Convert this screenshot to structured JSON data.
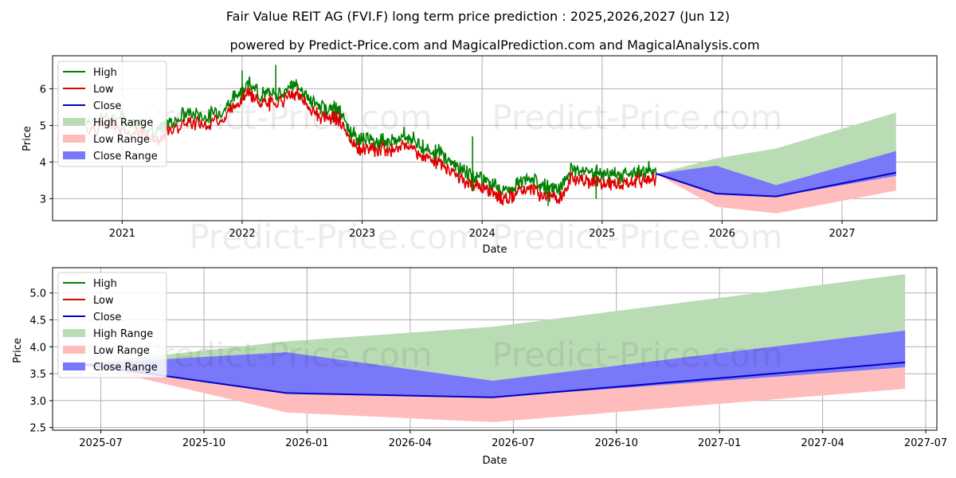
{
  "title": "Fair Value REIT AG (FVI.F) long term price prediction : 2025,2026,2027 (Jun 12)",
  "subtitle": "powered by Predict-Price.com and MagicalPrediction.com and MagicalAnalysis.com",
  "watermark": "Predict-Price.com",
  "colors": {
    "high": "#008000",
    "low": "#e00000",
    "close": "#0000c8",
    "high_range": "#b9dcb4",
    "low_range": "#ffbcbc",
    "close_range": "#7878f8"
  },
  "chart_data": [
    {
      "type": "line",
      "panel": "top",
      "xlabel": "Date",
      "ylabel": "Price",
      "x_ticks": [
        2021,
        2022,
        2023,
        2024,
        2025,
        2026,
        2027
      ],
      "x_tick_labels": [
        "2021",
        "2022",
        "2023",
        "2024",
        "2025",
        "2026",
        "2027"
      ],
      "xlim": [
        2020.42,
        2027.79
      ],
      "y_ticks": [
        3,
        4,
        5,
        6
      ],
      "y_tick_labels": [
        "3",
        "4",
        "5",
        "6"
      ],
      "ylim": [
        2.4,
        6.9
      ],
      "grid": true,
      "legend": [
        "High",
        "Low",
        "Close",
        "High Range",
        "Low Range",
        "Close Range"
      ],
      "legend_position": "upper-left",
      "history_anchor_points": [
        [
          2020.7,
          5.0
        ],
        [
          2020.9,
          5.1
        ],
        [
          2021.15,
          4.9
        ],
        [
          2021.3,
          4.7
        ],
        [
          2021.4,
          4.95
        ],
        [
          2021.55,
          5.2
        ],
        [
          2021.7,
          5.1
        ],
        [
          2021.85,
          5.3
        ],
        [
          2021.95,
          5.7
        ],
        [
          2022.05,
          6.0
        ],
        [
          2022.15,
          5.7
        ],
        [
          2022.25,
          5.7
        ],
        [
          2022.4,
          5.9
        ],
        [
          2022.45,
          6.0
        ],
        [
          2022.55,
          5.6
        ],
        [
          2022.65,
          5.35
        ],
        [
          2022.75,
          5.3
        ],
        [
          2022.8,
          5.3
        ],
        [
          2022.9,
          4.7
        ],
        [
          2022.98,
          4.45
        ],
        [
          2023.05,
          4.5
        ],
        [
          2023.15,
          4.45
        ],
        [
          2023.22,
          4.4
        ],
        [
          2023.35,
          4.6
        ],
        [
          2023.45,
          4.4
        ],
        [
          2023.55,
          4.2
        ],
        [
          2023.65,
          4.1
        ],
        [
          2023.75,
          3.85
        ],
        [
          2023.85,
          3.6
        ],
        [
          2023.92,
          3.5
        ],
        [
          2024.0,
          3.45
        ],
        [
          2024.08,
          3.3
        ],
        [
          2024.15,
          3.15
        ],
        [
          2024.25,
          3.15
        ],
        [
          2024.35,
          3.4
        ],
        [
          2024.45,
          3.3
        ],
        [
          2024.55,
          3.15
        ],
        [
          2024.65,
          3.1
        ],
        [
          2024.75,
          3.7
        ],
        [
          2024.85,
          3.6
        ],
        [
          2024.95,
          3.55
        ],
        [
          2025.05,
          3.5
        ],
        [
          2025.15,
          3.5
        ],
        [
          2025.25,
          3.55
        ],
        [
          2025.35,
          3.65
        ],
        [
          2025.45,
          3.68
        ]
      ],
      "history_spikes": [
        [
          2023.92,
          4.7,
          3.2
        ],
        [
          2024.55,
          3.3,
          2.8
        ],
        [
          2024.95,
          3.75,
          3.0
        ],
        [
          2022.28,
          6.65,
          5.7
        ],
        [
          2022.0,
          6.5,
          5.7
        ]
      ],
      "forecast": {
        "x": [
          2025.45,
          2025.95,
          2026.45,
          2027.45
        ],
        "close": [
          3.68,
          3.14,
          3.06,
          3.71
        ],
        "high_range_upper": [
          3.68,
          4.1,
          4.37,
          5.35
        ],
        "low_range_lower": [
          3.68,
          2.78,
          2.6,
          3.22
        ],
        "close_range_upper": [
          3.68,
          3.9,
          3.37,
          4.3
        ],
        "close_range_lower": [
          3.68,
          3.14,
          3.06,
          3.62
        ]
      }
    },
    {
      "type": "area",
      "panel": "bottom",
      "xlabel": "Date",
      "ylabel": "Price",
      "x_ticks": [
        2025.5,
        2025.75,
        2026.0,
        2026.25,
        2026.5,
        2026.75,
        2027.0,
        2027.25,
        2027.5
      ],
      "x_tick_labels": [
        "2025-07",
        "2025-10",
        "2026-01",
        "2026-04",
        "2026-07",
        "2026-10",
        "2027-01",
        "2027-04",
        "2027-07"
      ],
      "xlim": [
        2025.383,
        2027.527
      ],
      "y_ticks": [
        2.5,
        3.0,
        3.5,
        4.0,
        4.5,
        5.0
      ],
      "y_tick_labels": [
        "2.5",
        "3.0",
        "3.5",
        "4.0",
        "4.5",
        "5.0"
      ],
      "ylim": [
        2.45,
        5.47
      ],
      "grid": true,
      "legend": [
        "High",
        "Low",
        "Close",
        "High Range",
        "Low Range",
        "Close Range"
      ],
      "legend_position": "upper-left",
      "series": [
        {
          "name": "High Range",
          "x": [
            2025.45,
            2025.95,
            2026.45,
            2027.45
          ],
          "upper": [
            3.68,
            4.1,
            4.37,
            5.35
          ],
          "lower": [
            3.68,
            3.14,
            3.06,
            3.71
          ]
        },
        {
          "name": "Low Range",
          "x": [
            2025.45,
            2025.95,
            2026.45,
            2027.45
          ],
          "upper": [
            3.68,
            3.14,
            3.06,
            3.71
          ],
          "lower": [
            3.68,
            2.78,
            2.6,
            3.22
          ]
        },
        {
          "name": "Close Range",
          "x": [
            2025.45,
            2025.95,
            2026.45,
            2027.45
          ],
          "upper": [
            3.68,
            3.9,
            3.37,
            4.3
          ],
          "lower": [
            3.68,
            3.14,
            3.06,
            3.62
          ]
        },
        {
          "name": "Close",
          "x": [
            2025.45,
            2025.95,
            2026.45,
            2027.45
          ],
          "values": [
            3.68,
            3.14,
            3.06,
            3.71
          ]
        }
      ]
    }
  ]
}
